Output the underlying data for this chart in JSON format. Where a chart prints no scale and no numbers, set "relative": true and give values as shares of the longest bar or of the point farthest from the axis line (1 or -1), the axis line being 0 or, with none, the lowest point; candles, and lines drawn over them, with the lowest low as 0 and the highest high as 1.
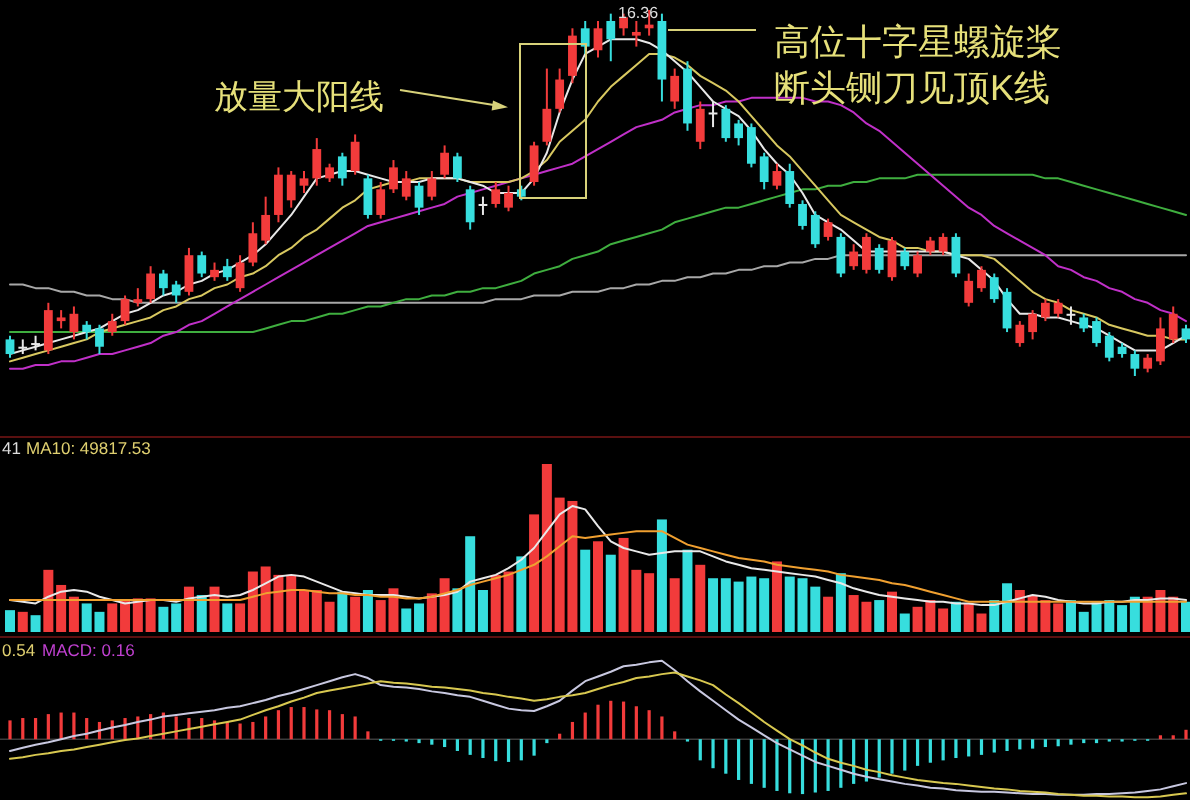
{
  "chart_data": [
    {
      "type": "candlestick",
      "relative": true,
      "categories": [
        null,
        null,
        null,
        null,
        null,
        null,
        null,
        null,
        null,
        null,
        null,
        null,
        null,
        null,
        null,
        null,
        null,
        null,
        null,
        null,
        null,
        null,
        null,
        null,
        null,
        null,
        null,
        null,
        null,
        null,
        null,
        null,
        null,
        null,
        null,
        null,
        null,
        null,
        null,
        null,
        null,
        null,
        null,
        null,
        null,
        null,
        null,
        null,
        null,
        null,
        null,
        null,
        null,
        null,
        null,
        null,
        null,
        null,
        null,
        null,
        null,
        null,
        null,
        null,
        null,
        null,
        null,
        null,
        null,
        null,
        null,
        null,
        null,
        null,
        null,
        null,
        null,
        null,
        null,
        null,
        null,
        null,
        null,
        null,
        null,
        null,
        null,
        null,
        null,
        null,
        null,
        null,
        null
      ],
      "ohlc": [
        [
          0.1,
          0.11,
          0.05,
          0.06
        ],
        [
          0.08,
          0.1,
          0.06,
          0.08
        ],
        [
          0.09,
          0.11,
          0.07,
          0.09
        ],
        [
          0.07,
          0.2,
          0.06,
          0.18
        ],
        [
          0.15,
          0.18,
          0.13,
          0.16
        ],
        [
          0.12,
          0.19,
          0.1,
          0.17
        ],
        [
          0.14,
          0.15,
          0.1,
          0.12
        ],
        [
          0.13,
          0.14,
          0.06,
          0.08
        ],
        [
          0.12,
          0.17,
          0.11,
          0.15
        ],
        [
          0.15,
          0.22,
          0.14,
          0.21
        ],
        [
          0.2,
          0.24,
          0.19,
          0.21
        ],
        [
          0.21,
          0.3,
          0.2,
          0.28
        ],
        [
          0.28,
          0.29,
          0.22,
          0.24
        ],
        [
          0.25,
          0.26,
          0.2,
          0.22
        ],
        [
          0.23,
          0.35,
          0.22,
          0.33
        ],
        [
          0.33,
          0.34,
          0.27,
          0.28
        ],
        [
          0.27,
          0.31,
          0.26,
          0.29
        ],
        [
          0.3,
          0.32,
          0.26,
          0.27
        ],
        [
          0.24,
          0.33,
          0.23,
          0.31
        ],
        [
          0.31,
          0.42,
          0.3,
          0.39
        ],
        [
          0.37,
          0.49,
          0.36,
          0.44
        ],
        [
          0.44,
          0.57,
          0.42,
          0.55
        ],
        [
          0.48,
          0.56,
          0.46,
          0.55
        ],
        [
          0.52,
          0.56,
          0.5,
          0.54
        ],
        [
          0.54,
          0.65,
          0.52,
          0.62
        ],
        [
          0.54,
          0.58,
          0.53,
          0.57
        ],
        [
          0.6,
          0.61,
          0.52,
          0.54
        ],
        [
          0.56,
          0.66,
          0.55,
          0.64
        ],
        [
          0.54,
          0.55,
          0.43,
          0.44
        ],
        [
          0.44,
          0.53,
          0.43,
          0.51
        ],
        [
          0.51,
          0.59,
          0.5,
          0.57
        ],
        [
          0.49,
          0.56,
          0.48,
          0.54
        ],
        [
          0.52,
          0.53,
          0.44,
          0.46
        ],
        [
          0.49,
          0.56,
          0.48,
          0.54
        ],
        [
          0.55,
          0.63,
          0.54,
          0.61
        ],
        [
          0.6,
          0.61,
          0.53,
          0.54
        ],
        [
          0.51,
          0.52,
          0.4,
          0.42
        ],
        [
          0.47,
          0.49,
          0.44,
          0.47
        ],
        [
          0.47,
          0.53,
          0.46,
          0.51
        ],
        [
          0.46,
          0.52,
          0.45,
          0.5
        ],
        [
          0.51,
          0.52,
          0.48,
          0.49
        ],
        [
          0.53,
          0.64,
          0.52,
          0.63
        ],
        [
          0.64,
          0.84,
          0.63,
          0.73
        ],
        [
          0.73,
          0.84,
          0.72,
          0.81
        ],
        [
          0.82,
          0.95,
          0.8,
          0.93
        ],
        [
          0.95,
          0.97,
          0.88,
          0.9
        ],
        [
          0.89,
          0.97,
          0.87,
          0.95
        ],
        [
          0.97,
          0.99,
          0.86,
          0.92
        ],
        [
          0.95,
          0.99,
          0.93,
          0.98
        ],
        [
          0.93,
          0.97,
          0.9,
          0.94
        ],
        [
          0.95,
          1,
          0.93,
          0.96
        ],
        [
          0.97,
          0.99,
          0.75,
          0.81
        ],
        [
          0.75,
          0.84,
          0.73,
          0.82
        ],
        [
          0.84,
          0.86,
          0.67,
          0.69
        ],
        [
          0.64,
          0.75,
          0.62,
          0.73
        ],
        [
          0.72,
          0.75,
          0.68,
          0.72
        ],
        [
          0.73,
          0.74,
          0.64,
          0.65
        ],
        [
          0.69,
          0.7,
          0.63,
          0.65
        ],
        [
          0.68,
          0.69,
          0.57,
          0.58
        ],
        [
          0.6,
          0.61,
          0.51,
          0.53
        ],
        [
          0.52,
          0.58,
          0.51,
          0.56
        ],
        [
          0.56,
          0.58,
          0.46,
          0.47
        ],
        [
          0.47,
          0.48,
          0.4,
          0.41
        ],
        [
          0.44,
          0.45,
          0.35,
          0.36
        ],
        [
          0.38,
          0.43,
          0.37,
          0.42
        ],
        [
          0.38,
          0.39,
          0.27,
          0.28
        ],
        [
          0.3,
          0.36,
          0.29,
          0.34
        ],
        [
          0.29,
          0.39,
          0.28,
          0.38
        ],
        [
          0.35,
          0.36,
          0.28,
          0.29
        ],
        [
          0.27,
          0.38,
          0.26,
          0.37
        ],
        [
          0.34,
          0.35,
          0.29,
          0.3
        ],
        [
          0.28,
          0.34,
          0.27,
          0.33
        ],
        [
          0.34,
          0.38,
          0.33,
          0.37
        ],
        [
          0.34,
          0.39,
          0.33,
          0.38
        ],
        [
          0.38,
          0.39,
          0.27,
          0.28
        ],
        [
          0.2,
          0.28,
          0.19,
          0.26
        ],
        [
          0.24,
          0.3,
          0.23,
          0.29
        ],
        [
          0.27,
          0.28,
          0.2,
          0.21
        ],
        [
          0.23,
          0.24,
          0.12,
          0.13
        ],
        [
          0.09,
          0.15,
          0.08,
          0.14
        ],
        [
          0.12,
          0.18,
          0.1,
          0.17
        ],
        [
          0.16,
          0.21,
          0.15,
          0.2
        ],
        [
          0.17,
          0.21,
          0.16,
          0.2
        ],
        [
          0.17,
          0.19,
          0.14,
          0.17
        ],
        [
          0.16,
          0.17,
          0.12,
          0.13
        ],
        [
          0.15,
          0.16,
          0.08,
          0.09
        ],
        [
          0.11,
          0.12,
          0.04,
          0.05
        ],
        [
          0.08,
          0.09,
          0.05,
          0.06
        ],
        [
          0.06,
          0.07,
          0,
          0.02
        ],
        [
          0.02,
          0.06,
          0.01,
          0.05
        ],
        [
          0.04,
          0.16,
          0.03,
          0.13
        ],
        [
          0.1,
          0.19,
          0.09,
          0.17
        ],
        [
          0.13,
          0.14,
          0.09,
          0.1
        ]
      ],
      "colors": [
        "#37dede",
        "#e8e8e8",
        "#e8e8e8",
        "#f23b3b",
        "#f23b3b",
        "#f23b3b",
        "#37dede",
        "#37dede",
        "#f23b3b",
        "#f23b3b",
        "#f23b3b",
        "#f23b3b",
        "#37dede",
        "#37dede",
        "#f23b3b",
        "#37dede",
        "#f23b3b",
        "#37dede",
        "#f23b3b",
        "#f23b3b",
        "#f23b3b",
        "#f23b3b",
        "#f23b3b",
        "#f23b3b",
        "#f23b3b",
        "#f23b3b",
        "#37dede",
        "#f23b3b",
        "#37dede",
        "#f23b3b",
        "#f23b3b",
        "#f23b3b",
        "#37dede",
        "#f23b3b",
        "#f23b3b",
        "#37dede",
        "#37dede",
        "#e8e8e8",
        "#f23b3b",
        "#f23b3b",
        "#37dede",
        "#f23b3b",
        "#f23b3b",
        "#f23b3b",
        "#f23b3b",
        "#37dede",
        "#f23b3b",
        "#37dede",
        "#f23b3b",
        "#f23b3b",
        "#f23b3b",
        "#37dede",
        "#f23b3b",
        "#37dede",
        "#f23b3b",
        "#e8e8e8",
        "#37dede",
        "#37dede",
        "#37dede",
        "#37dede",
        "#f23b3b",
        "#37dede",
        "#37dede",
        "#37dede",
        "#f23b3b",
        "#37dede",
        "#f23b3b",
        "#f23b3b",
        "#37dede",
        "#f23b3b",
        "#37dede",
        "#f23b3b",
        "#f23b3b",
        "#f23b3b",
        "#37dede",
        "#f23b3b",
        "#f23b3b",
        "#37dede",
        "#37dede",
        "#f23b3b",
        "#f23b3b",
        "#f23b3b",
        "#f23b3b",
        "#e8e8e8",
        "#37dede",
        "#37dede",
        "#37dede",
        "#37dede",
        "#37dede",
        "#f23b3b",
        "#f23b3b",
        "#f23b3b",
        "#37dede"
      ],
      "series": [
        {
          "type": "line",
          "color": "#a8a8a8",
          "values": [
            0.25,
            0.25,
            0.24,
            0.24,
            0.23,
            0.23,
            0.22,
            0.22,
            0.21,
            0.21,
            0.2,
            0.2,
            0.2,
            0.2,
            0.2,
            0.2,
            0.2,
            0.2,
            0.2,
            0.2,
            0.2,
            0.2,
            0.2,
            0.2,
            0.2,
            0.2,
            0.2,
            0.2,
            0.2,
            0.2,
            0.2,
            0.2,
            0.2,
            0.2,
            0.2,
            0.2,
            0.2,
            0.2,
            0.21,
            0.21,
            0.21,
            0.22,
            0.22,
            0.22,
            0.23,
            0.23,
            0.23,
            0.24,
            0.24,
            0.25,
            0.25,
            0.26,
            0.26,
            0.27,
            0.27,
            0.28,
            0.28,
            0.29,
            0.29,
            0.3,
            0.3,
            0.31,
            0.31,
            0.32,
            0.32,
            0.33,
            0.33,
            0.33,
            0.33,
            0.33,
            0.33,
            0.33,
            0.33,
            0.33,
            0.33,
            0.33,
            0.33,
            0.33,
            0.33,
            0.33,
            0.33,
            0.33,
            0.33,
            0.33,
            0.33,
            0.33,
            0.33,
            0.33,
            0.33,
            0.33,
            0.33,
            0.33,
            0.33
          ]
        },
        {
          "type": "line",
          "color": "#3fae3f",
          "values": [
            0.12,
            0.12,
            0.12,
            0.12,
            0.12,
            0.12,
            0.12,
            0.12,
            0.12,
            0.12,
            0.12,
            0.12,
            0.12,
            0.12,
            0.12,
            0.12,
            0.12,
            0.12,
            0.12,
            0.12,
            0.13,
            0.14,
            0.15,
            0.15,
            0.16,
            0.17,
            0.17,
            0.18,
            0.19,
            0.19,
            0.2,
            0.21,
            0.21,
            0.22,
            0.22,
            0.23,
            0.23,
            0.24,
            0.24,
            0.25,
            0.26,
            0.28,
            0.29,
            0.3,
            0.32,
            0.33,
            0.34,
            0.36,
            0.37,
            0.38,
            0.39,
            0.4,
            0.42,
            0.43,
            0.44,
            0.45,
            0.46,
            0.46,
            0.47,
            0.48,
            0.49,
            0.5,
            0.51,
            0.51,
            0.52,
            0.52,
            0.53,
            0.53,
            0.54,
            0.54,
            0.54,
            0.55,
            0.55,
            0.55,
            0.55,
            0.55,
            0.55,
            0.55,
            0.55,
            0.55,
            0.55,
            0.54,
            0.54,
            0.53,
            0.52,
            0.51,
            0.5,
            0.49,
            0.48,
            0.47,
            0.46,
            0.45,
            0.44
          ]
        },
        {
          "type": "line",
          "color": "#c030c8",
          "values": [
            0.02,
            0.02,
            0.03,
            0.03,
            0.04,
            0.04,
            0.05,
            0.06,
            0.06,
            0.07,
            0.08,
            0.09,
            0.11,
            0.12,
            0.14,
            0.15,
            0.17,
            0.19,
            0.21,
            0.23,
            0.25,
            0.27,
            0.29,
            0.31,
            0.33,
            0.35,
            0.37,
            0.39,
            0.41,
            0.42,
            0.43,
            0.44,
            0.45,
            0.46,
            0.47,
            0.49,
            0.5,
            0.51,
            0.52,
            0.53,
            0.54,
            0.55,
            0.56,
            0.57,
            0.58,
            0.6,
            0.62,
            0.64,
            0.66,
            0.68,
            0.69,
            0.7,
            0.72,
            0.73,
            0.74,
            0.74,
            0.75,
            0.75,
            0.76,
            0.76,
            0.76,
            0.76,
            0.76,
            0.75,
            0.75,
            0.74,
            0.72,
            0.69,
            0.67,
            0.64,
            0.61,
            0.58,
            0.55,
            0.52,
            0.49,
            0.46,
            0.44,
            0.41,
            0.39,
            0.37,
            0.35,
            0.33,
            0.3,
            0.29,
            0.27,
            0.26,
            0.24,
            0.23,
            0.21,
            0.2,
            0.18,
            0.17,
            0.15
          ]
        },
        {
          "type": "line",
          "color": "#d8c860",
          "values": [
            0.04,
            0.05,
            0.06,
            0.07,
            0.08,
            0.09,
            0.1,
            0.12,
            0.13,
            0.14,
            0.15,
            0.16,
            0.18,
            0.19,
            0.21,
            0.22,
            0.24,
            0.25,
            0.27,
            0.28,
            0.3,
            0.33,
            0.35,
            0.38,
            0.4,
            0.43,
            0.46,
            0.48,
            0.51,
            0.52,
            0.53,
            0.53,
            0.54,
            0.54,
            0.54,
            0.54,
            0.53,
            0.53,
            0.53,
            0.53,
            0.54,
            0.56,
            0.59,
            0.64,
            0.67,
            0.7,
            0.75,
            0.79,
            0.82,
            0.85,
            0.88,
            0.88,
            0.87,
            0.85,
            0.82,
            0.8,
            0.78,
            0.75,
            0.71,
            0.67,
            0.63,
            0.6,
            0.56,
            0.52,
            0.48,
            0.44,
            0.42,
            0.4,
            0.38,
            0.37,
            0.35,
            0.35,
            0.34,
            0.34,
            0.33,
            0.33,
            0.33,
            0.32,
            0.29,
            0.26,
            0.23,
            0.21,
            0.2,
            0.18,
            0.17,
            0.16,
            0.14,
            0.13,
            0.12,
            0.11,
            0.11,
            0.1,
            0.1
          ]
        },
        {
          "type": "line",
          "color": "#e8e8e8",
          "values": [
            0.06,
            0.07,
            0.08,
            0.09,
            0.1,
            0.11,
            0.12,
            0.13,
            0.15,
            0.17,
            0.18,
            0.2,
            0.22,
            0.23,
            0.25,
            0.26,
            0.28,
            0.29,
            0.31,
            0.33,
            0.36,
            0.4,
            0.44,
            0.49,
            0.54,
            0.55,
            0.56,
            0.56,
            0.55,
            0.54,
            0.53,
            0.53,
            0.53,
            0.54,
            0.54,
            0.54,
            0.53,
            0.52,
            0.5,
            0.5,
            0.5,
            0.54,
            0.61,
            0.72,
            0.81,
            0.88,
            0.9,
            0.92,
            0.92,
            0.92,
            0.91,
            0.89,
            0.86,
            0.83,
            0.79,
            0.75,
            0.73,
            0.71,
            0.67,
            0.62,
            0.58,
            0.55,
            0.5,
            0.44,
            0.42,
            0.4,
            0.37,
            0.34,
            0.34,
            0.34,
            0.34,
            0.34,
            0.34,
            0.34,
            0.33,
            0.32,
            0.29,
            0.26,
            0.21,
            0.17,
            0.17,
            0.16,
            0.16,
            0.15,
            0.14,
            0.13,
            0.11,
            0.09,
            0.07,
            0.07,
            0.07,
            0.09,
            0.11
          ]
        }
      ],
      "annotations": [
        "放量大阳线",
        "16.36",
        "高位十字星螺旋桨",
        "断头铡刀见顶K线"
      ]
    },
    {
      "type": "bar",
      "relative": true,
      "categories": [
        null,
        null,
        null,
        null,
        null,
        null,
        null,
        null,
        null,
        null,
        null,
        null,
        null,
        null,
        null,
        null,
        null,
        null,
        null,
        null,
        null,
        null,
        null,
        null,
        null,
        null,
        null,
        null,
        null,
        null,
        null,
        null,
        null,
        null,
        null,
        null,
        null,
        null,
        null,
        null,
        null,
        null,
        null,
        null,
        null,
        null,
        null,
        null,
        null,
        null,
        null,
        null,
        null,
        null,
        null,
        null,
        null,
        null,
        null,
        null,
        null,
        null,
        null,
        null,
        null,
        null,
        null,
        null,
        null,
        null,
        null,
        null,
        null,
        null,
        null,
        null,
        null,
        null,
        null,
        null,
        null,
        null,
        null,
        null,
        null,
        null,
        null,
        null,
        null,
        null,
        null,
        null,
        null
      ],
      "series": [
        {
          "type": "bar",
          "colors": [
            "#37dede",
            "#f23b3b",
            "#37dede",
            "#f23b3b",
            "#f23b3b",
            "#f23b3b",
            "#37dede",
            "#37dede",
            "#f23b3b",
            "#f23b3b",
            "#f23b3b",
            "#f23b3b",
            "#37dede",
            "#37dede",
            "#f23b3b",
            "#37dede",
            "#f23b3b",
            "#37dede",
            "#f23b3b",
            "#f23b3b",
            "#f23b3b",
            "#f23b3b",
            "#f23b3b",
            "#f23b3b",
            "#f23b3b",
            "#f23b3b",
            "#37dede",
            "#f23b3b",
            "#37dede",
            "#f23b3b",
            "#f23b3b",
            "#37dede",
            "#37dede",
            "#f23b3b",
            "#f23b3b",
            "#37dede",
            "#37dede",
            "#37dede",
            "#f23b3b",
            "#f23b3b",
            "#37dede",
            "#f23b3b",
            "#f23b3b",
            "#f23b3b",
            "#f23b3b",
            "#37dede",
            "#f23b3b",
            "#37dede",
            "#f23b3b",
            "#f23b3b",
            "#f23b3b",
            "#37dede",
            "#f23b3b",
            "#37dede",
            "#f23b3b",
            "#37dede",
            "#37dede",
            "#37dede",
            "#37dede",
            "#37dede",
            "#f23b3b",
            "#37dede",
            "#37dede",
            "#37dede",
            "#f23b3b",
            "#37dede",
            "#f23b3b",
            "#f23b3b",
            "#37dede",
            "#f23b3b",
            "#37dede",
            "#f23b3b",
            "#f23b3b",
            "#f23b3b",
            "#37dede",
            "#f23b3b",
            "#f23b3b",
            "#37dede",
            "#37dede",
            "#f23b3b",
            "#f23b3b",
            "#f23b3b",
            "#f23b3b",
            "#37dede",
            "#37dede",
            "#37dede",
            "#37dede",
            "#37dede",
            "#37dede",
            "#f23b3b",
            "#f23b3b",
            "#f23b3b",
            "#37dede"
          ],
          "values": [
            0.13,
            0.12,
            0.1,
            0.37,
            0.28,
            0.21,
            0.17,
            0.12,
            0.17,
            0.19,
            0.2,
            0.2,
            0.15,
            0.17,
            0.27,
            0.22,
            0.27,
            0.17,
            0.17,
            0.36,
            0.39,
            0.34,
            0.34,
            0.25,
            0.25,
            0.18,
            0.24,
            0.21,
            0.25,
            0.19,
            0.26,
            0.14,
            0.17,
            0.23,
            0.32,
            0.26,
            0.57,
            0.25,
            0.34,
            0.36,
            0.45,
            0.7,
            1,
            0.8,
            0.78,
            0.49,
            0.54,
            0.46,
            0.56,
            0.37,
            0.35,
            0.67,
            0.32,
            0.49,
            0.4,
            0.32,
            0.32,
            0.3,
            0.33,
            0.32,
            0.42,
            0.33,
            0.32,
            0.27,
            0.21,
            0.35,
            0.22,
            0.18,
            0.19,
            0.24,
            0.11,
            0.15,
            0.19,
            0.14,
            0.18,
            0.17,
            0.11,
            0.19,
            0.29,
            0.25,
            0.22,
            0.19,
            0.17,
            0.19,
            0.12,
            0.18,
            0.19,
            0.16,
            0.21,
            0.21,
            0.25,
            0.21,
            0.18
          ]
        },
        {
          "type": "line",
          "color": "#e8e8e8",
          "values": [
            0.19,
            0.18,
            0.17,
            0.21,
            0.24,
            0.25,
            0.24,
            0.21,
            0.19,
            0.17,
            0.18,
            0.19,
            0.19,
            0.18,
            0.2,
            0.21,
            0.22,
            0.21,
            0.22,
            0.25,
            0.29,
            0.33,
            0.34,
            0.33,
            0.3,
            0.27,
            0.24,
            0.23,
            0.22,
            0.22,
            0.22,
            0.21,
            0.2,
            0.21,
            0.22,
            0.24,
            0.3,
            0.32,
            0.34,
            0.38,
            0.43,
            0.5,
            0.6,
            0.7,
            0.75,
            0.73,
            0.63,
            0.54,
            0.5,
            0.48,
            0.46,
            0.47,
            0.48,
            0.48,
            0.48,
            0.45,
            0.42,
            0.4,
            0.38,
            0.37,
            0.36,
            0.35,
            0.34,
            0.33,
            0.31,
            0.29,
            0.26,
            0.24,
            0.22,
            0.21,
            0.2,
            0.19,
            0.18,
            0.18,
            0.17,
            0.17,
            0.16,
            0.16,
            0.18,
            0.2,
            0.22,
            0.21,
            0.19,
            0.18,
            0.17,
            0.17,
            0.18,
            0.18,
            0.19,
            0.19,
            0.2,
            0.2,
            0.19
          ]
        },
        {
          "type": "line",
          "color": "#f0a030",
          "values": [
            0.19,
            0.19,
            0.19,
            0.19,
            0.19,
            0.19,
            0.19,
            0.19,
            0.19,
            0.19,
            0.19,
            0.19,
            0.19,
            0.19,
            0.19,
            0.19,
            0.19,
            0.19,
            0.19,
            0.21,
            0.23,
            0.24,
            0.25,
            0.25,
            0.24,
            0.23,
            0.23,
            0.22,
            0.22,
            0.21,
            0.21,
            0.2,
            0.2,
            0.21,
            0.23,
            0.25,
            0.28,
            0.3,
            0.32,
            0.34,
            0.37,
            0.4,
            0.45,
            0.51,
            0.57,
            0.56,
            0.57,
            0.58,
            0.59,
            0.6,
            0.6,
            0.6,
            0.56,
            0.52,
            0.5,
            0.48,
            0.46,
            0.44,
            0.43,
            0.42,
            0.4,
            0.39,
            0.38,
            0.37,
            0.36,
            0.34,
            0.33,
            0.32,
            0.31,
            0.29,
            0.28,
            0.26,
            0.24,
            0.22,
            0.2,
            0.18,
            0.18,
            0.18,
            0.18,
            0.18,
            0.18,
            0.18,
            0.18,
            0.18,
            0.18,
            0.18,
            0.18,
            0.18,
            0.18,
            0.18,
            0.18,
            0.18,
            0.18
          ]
        }
      ],
      "annotations": [
        "41",
        "MA10: 49817.53"
      ]
    },
    {
      "type": "bar",
      "relative": true,
      "categories": [
        null,
        null,
        null,
        null,
        null,
        null,
        null,
        null,
        null,
        null,
        null,
        null,
        null,
        null,
        null,
        null,
        null,
        null,
        null,
        null,
        null,
        null,
        null,
        null,
        null,
        null,
        null,
        null,
        null,
        null,
        null,
        null,
        null,
        null,
        null,
        null,
        null,
        null,
        null,
        null,
        null,
        null,
        null,
        null,
        null,
        null,
        null,
        null,
        null,
        null,
        null,
        null,
        null,
        null,
        null,
        null,
        null,
        null,
        null,
        null,
        null,
        null,
        null,
        null,
        null,
        null,
        null,
        null,
        null,
        null,
        null,
        null,
        null,
        null,
        null,
        null,
        null,
        null,
        null,
        null,
        null,
        null,
        null,
        null,
        null,
        null,
        null,
        null,
        null,
        null,
        null,
        null,
        null
      ],
      "series": [
        {
          "type": "bar",
          "colors": [
            "#f23b3b",
            "#f23b3b",
            "#f23b3b",
            "#f23b3b",
            "#f23b3b",
            "#f23b3b",
            "#f23b3b",
            "#f23b3b",
            "#f23b3b",
            "#f23b3b",
            "#f23b3b",
            "#f23b3b",
            "#f23b3b",
            "#f23b3b",
            "#f23b3b",
            "#f23b3b",
            "#f23b3b",
            "#f23b3b",
            "#f23b3b",
            "#f23b3b",
            "#f23b3b",
            "#f23b3b",
            "#f23b3b",
            "#f23b3b",
            "#f23b3b",
            "#f23b3b",
            "#f23b3b",
            "#f23b3b",
            "#f23b3b",
            "#37dede",
            "#37dede",
            "#37dede",
            "#37dede",
            "#37dede",
            "#37dede",
            "#37dede",
            "#37dede",
            "#37dede",
            "#37dede",
            "#37dede",
            "#37dede",
            "#37dede",
            "#37dede",
            "#f23b3b",
            "#f23b3b",
            "#f23b3b",
            "#f23b3b",
            "#f23b3b",
            "#f23b3b",
            "#f23b3b",
            "#f23b3b",
            "#f23b3b",
            "#f23b3b",
            "#37dede",
            "#37dede",
            "#37dede",
            "#37dede",
            "#37dede",
            "#37dede",
            "#37dede",
            "#37dede",
            "#37dede",
            "#37dede",
            "#37dede",
            "#37dede",
            "#37dede",
            "#37dede",
            "#37dede",
            "#37dede",
            "#37dede",
            "#37dede",
            "#37dede",
            "#37dede",
            "#37dede",
            "#37dede",
            "#37dede",
            "#37dede",
            "#37dede",
            "#37dede",
            "#37dede",
            "#37dede",
            "#37dede",
            "#37dede",
            "#37dede",
            "#37dede",
            "#37dede",
            "#37dede",
            "#37dede",
            "#37dede",
            "#37dede",
            "#f23b3b",
            "#f23b3b",
            "#f23b3b"
          ],
          "values": [
            0.24,
            0.27,
            0.27,
            0.32,
            0.34,
            0.34,
            0.27,
            0.22,
            0.24,
            0.27,
            0.29,
            0.32,
            0.34,
            0.29,
            0.27,
            0.27,
            0.24,
            0.22,
            0.2,
            0.22,
            0.29,
            0.37,
            0.41,
            0.41,
            0.38,
            0.37,
            0.32,
            0.29,
            0.1,
            -0.02,
            -0.02,
            -0.03,
            -0.05,
            -0.07,
            -0.1,
            -0.15,
            -0.2,
            -0.24,
            -0.28,
            -0.29,
            -0.27,
            -0.21,
            -0.05,
            0.07,
            0.22,
            0.34,
            0.44,
            0.49,
            0.48,
            0.42,
            0.37,
            0.29,
            0.1,
            -0.03,
            -0.27,
            -0.37,
            -0.44,
            -0.52,
            -0.57,
            -0.62,
            -0.66,
            -0.69,
            -0.7,
            -0.68,
            -0.66,
            -0.62,
            -0.57,
            -0.54,
            -0.49,
            -0.44,
            -0.4,
            -0.34,
            -0.3,
            -0.27,
            -0.24,
            -0.22,
            -0.2,
            -0.17,
            -0.15,
            -0.13,
            -0.12,
            -0.1,
            -0.09,
            -0.07,
            -0.05,
            -0.05,
            -0.03,
            -0.03,
            -0.02,
            -0.02,
            0.05,
            0.05,
            0.12
          ]
        },
        {
          "type": "line",
          "color": "#c8c8e0",
          "values": [
            -0.15,
            -0.11,
            -0.07,
            -0.04,
            0.0,
            0.04,
            0.07,
            0.11,
            0.15,
            0.18,
            0.22,
            0.25,
            0.29,
            0.31,
            0.33,
            0.35,
            0.37,
            0.4,
            0.42,
            0.46,
            0.5,
            0.55,
            0.59,
            0.64,
            0.69,
            0.74,
            0.79,
            0.83,
            0.78,
            0.69,
            0.67,
            0.66,
            0.64,
            0.61,
            0.59,
            0.56,
            0.54,
            0.49,
            0.44,
            0.39,
            0.37,
            0.36,
            0.42,
            0.49,
            0.62,
            0.74,
            0.8,
            0.86,
            0.93,
            0.95,
            0.98,
            1,
            0.88,
            0.74,
            0.61,
            0.49,
            0.37,
            0.25,
            0.15,
            0.05,
            -0.05,
            -0.13,
            -0.21,
            -0.29,
            -0.34,
            -0.39,
            -0.44,
            -0.48,
            -0.51,
            -0.54,
            -0.57,
            -0.59,
            -0.62,
            -0.63,
            -0.65,
            -0.66,
            -0.67,
            -0.67,
            -0.68,
            -0.69,
            -0.7,
            -0.7,
            -0.71,
            -0.71,
            -0.71,
            -0.7,
            -0.7,
            -0.69,
            -0.68,
            -0.66,
            -0.64,
            -0.6,
            -0.56
          ]
        },
        {
          "type": "line",
          "color": "#d8c850",
          "values": [
            -0.25,
            -0.23,
            -0.2,
            -0.18,
            -0.15,
            -0.13,
            -0.1,
            -0.07,
            -0.04,
            -0.01,
            0.01,
            0.04,
            0.07,
            0.1,
            0.13,
            0.16,
            0.19,
            0.22,
            0.25,
            0.31,
            0.37,
            0.42,
            0.48,
            0.53,
            0.59,
            0.62,
            0.65,
            0.68,
            0.71,
            0.74,
            0.72,
            0.71,
            0.69,
            0.67,
            0.66,
            0.64,
            0.62,
            0.59,
            0.57,
            0.54,
            0.52,
            0.49,
            0.51,
            0.54,
            0.56,
            0.59,
            0.64,
            0.69,
            0.73,
            0.78,
            0.8,
            0.83,
            0.85,
            0.8,
            0.75,
            0.69,
            0.57,
            0.46,
            0.34,
            0.22,
            0.11,
            0.0,
            -0.08,
            -0.17,
            -0.25,
            -0.3,
            -0.34,
            -0.39,
            -0.42,
            -0.46,
            -0.49,
            -0.52,
            -0.54,
            -0.56,
            -0.57,
            -0.59,
            -0.61,
            -0.63,
            -0.64,
            -0.66,
            -0.67,
            -0.68,
            -0.7,
            -0.71,
            -0.72,
            -0.72,
            -0.73,
            -0.73,
            -0.74,
            -0.74,
            -0.73,
            -0.71,
            -0.69
          ]
        }
      ],
      "annotations": [
        "0.54",
        "MACD: 0.16"
      ]
    }
  ]
}
